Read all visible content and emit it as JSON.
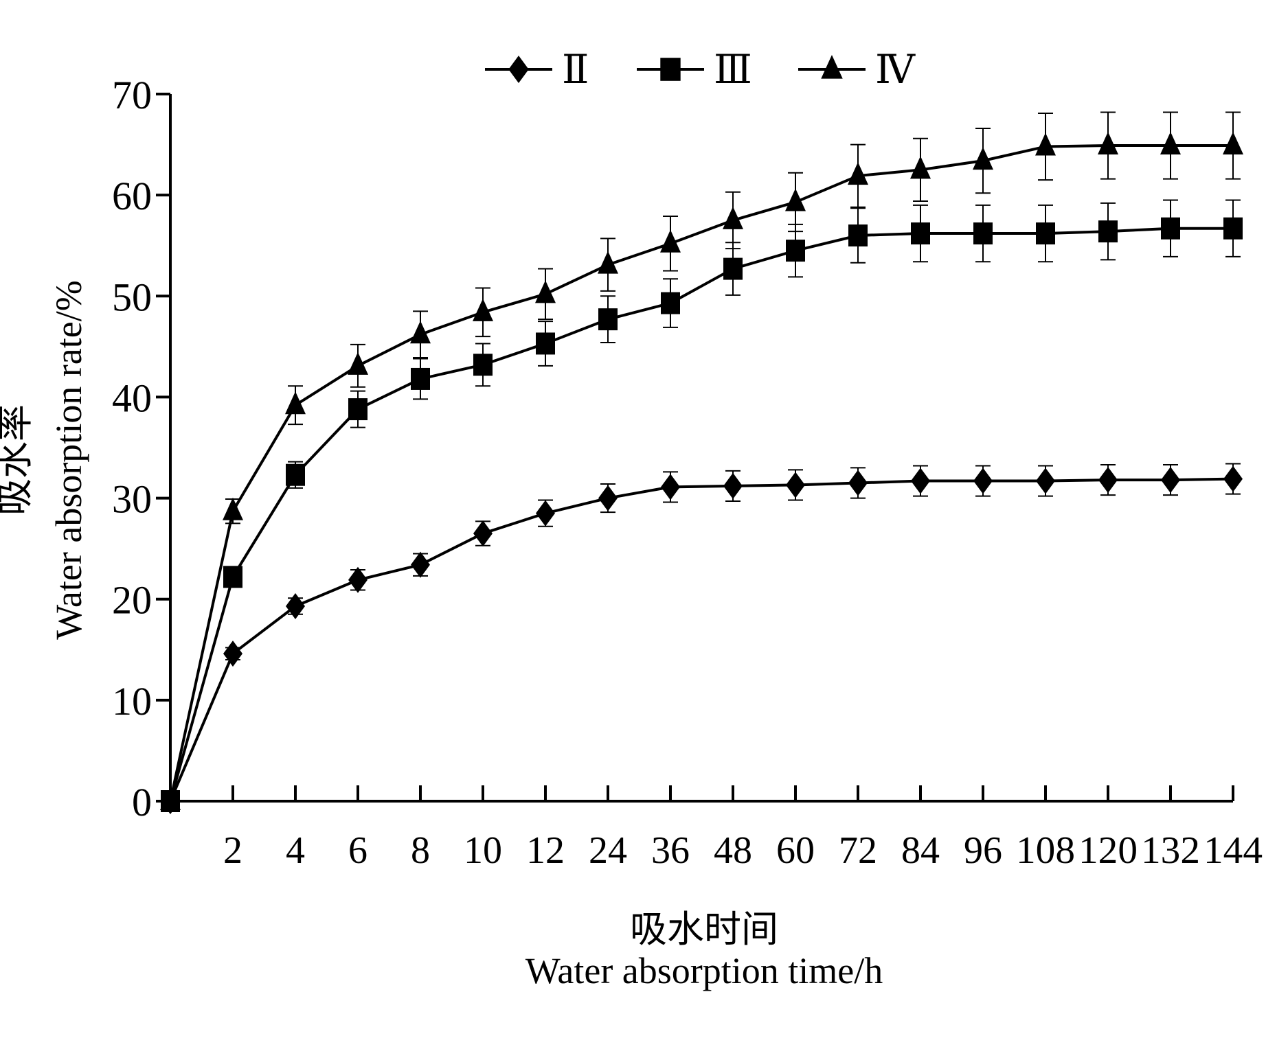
{
  "chart_data": {
    "type": "line",
    "title": "",
    "xlabel_zh": "吸水时间",
    "xlabel": "Water absorption time/h",
    "ylabel_zh": "吸水率",
    "ylabel": "Water absorption rate/%",
    "x": [
      0,
      2,
      4,
      6,
      8,
      10,
      12,
      24,
      36,
      48,
      60,
      72,
      84,
      96,
      108,
      120,
      132,
      144
    ],
    "x_tick_labels": [
      "2",
      "4",
      "6",
      "8",
      "10",
      "12",
      "24",
      "36",
      "48",
      "60",
      "72",
      "84",
      "96",
      "108",
      "120",
      "132",
      "144"
    ],
    "x_scale": "categorical (equally spaced sampling times)",
    "ylim": [
      0,
      70
    ],
    "y_ticks": [
      0,
      10,
      20,
      30,
      40,
      50,
      60,
      70
    ],
    "grid": false,
    "legend_position": "top-center",
    "series": [
      {
        "name": "Ⅱ",
        "marker": "diamond",
        "values": [
          0,
          14.6,
          19.3,
          21.9,
          23.4,
          26.5,
          28.5,
          30.0,
          31.1,
          31.2,
          31.3,
          31.5,
          31.7,
          31.7,
          31.7,
          31.8,
          31.8,
          31.9
        ],
        "errors": [
          0,
          0.6,
          0.8,
          1.0,
          1.1,
          1.2,
          1.3,
          1.4,
          1.5,
          1.5,
          1.5,
          1.5,
          1.5,
          1.5,
          1.5,
          1.5,
          1.5,
          1.5
        ]
      },
      {
        "name": "Ⅲ",
        "marker": "square",
        "values": [
          0,
          22.2,
          32.3,
          38.8,
          41.8,
          43.2,
          45.3,
          47.7,
          49.3,
          52.7,
          54.5,
          56.0,
          56.2,
          56.2,
          56.2,
          56.4,
          56.7,
          56.7
        ],
        "errors": [
          0,
          0.8,
          1.3,
          1.8,
          2.0,
          2.1,
          2.2,
          2.3,
          2.4,
          2.6,
          2.6,
          2.7,
          2.8,
          2.8,
          2.8,
          2.8,
          2.8,
          2.8
        ]
      },
      {
        "name": "Ⅳ",
        "marker": "triangle",
        "values": [
          0,
          28.7,
          39.2,
          43.1,
          46.2,
          48.4,
          50.2,
          53.1,
          55.2,
          57.5,
          59.3,
          61.9,
          62.5,
          63.4,
          64.8,
          64.9,
          64.9,
          64.9
        ],
        "errors": [
          0,
          1.2,
          1.9,
          2.1,
          2.3,
          2.4,
          2.5,
          2.6,
          2.7,
          2.8,
          2.9,
          3.1,
          3.1,
          3.2,
          3.3,
          3.3,
          3.3,
          3.3
        ]
      }
    ]
  }
}
